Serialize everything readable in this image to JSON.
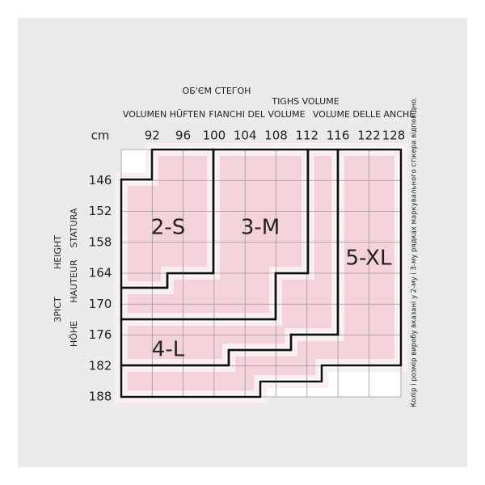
{
  "header": {
    "lines": [
      "ОБ'ЄМ СТЕГОН",
      "TIGHS VOLUME",
      "VOLUMEN HÜFTEN",
      "FIANCHI DEL VOLUME",
      "VOLUME DELLE ANCHE"
    ]
  },
  "axis_labels": [
    "ЗРІСТ",
    "HEIGHT",
    "HÖHE",
    "HAUTEUR",
    "STATURA"
  ],
  "unit": "cm",
  "columns": [
    "92",
    "96",
    "100",
    "104",
    "108",
    "112",
    "116",
    "122",
    "128"
  ],
  "rows": [
    "146",
    "152",
    "158",
    "164",
    "170",
    "176",
    "182",
    "188"
  ],
  "sizes": [
    "2-S",
    "3-M",
    "4-L",
    "5-XL"
  ],
  "note": "Колір і розмір виробу вказані у 2-му і 3-му рядках маркувального стікера відповідно."
}
